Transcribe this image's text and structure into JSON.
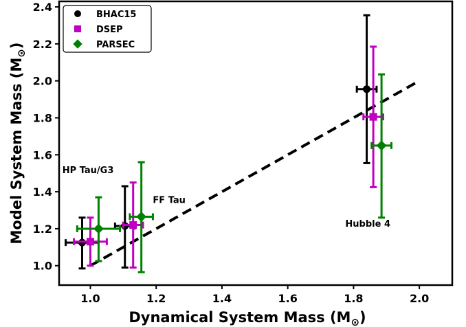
{
  "chart_data": {
    "type": "scatter",
    "xlabel": "Dynamical System Mass (M",
    "ylabel": "Model System Mass (M",
    "unit_symbol": "⊙",
    "xlim": [
      0.905,
      2.1
    ],
    "ylim": [
      0.895,
      2.43
    ],
    "xticks": [
      1.0,
      1.2,
      1.4,
      1.6,
      1.8,
      2.0
    ],
    "xtick_labels": [
      "1.0",
      "1.2",
      "1.4",
      "1.6",
      "1.8",
      "2.0"
    ],
    "yticks": [
      1.0,
      1.2,
      1.4,
      1.6,
      1.8,
      2.0,
      2.2,
      2.4
    ],
    "ytick_labels": [
      "1.0",
      "1.2",
      "1.4",
      "1.6",
      "1.8",
      "2.0",
      "2.2",
      "2.4"
    ],
    "one_to_one_line": {
      "x": [
        1.0,
        2.0
      ],
      "y": [
        1.0,
        2.0
      ],
      "style": "dashed",
      "color": "#000000"
    },
    "legend_position": "upper-left",
    "series": [
      {
        "name": "BHAC15",
        "marker": "circle",
        "color": "#000000",
        "points": [
          {
            "x": 0.975,
            "y": 1.125,
            "xerr": 0.05,
            "yerr_low": 0.14,
            "yerr_high": 0.135
          },
          {
            "x": 1.105,
            "y": 1.215,
            "xerr": 0.03,
            "yerr_low": 0.225,
            "yerr_high": 0.215
          },
          {
            "x": 1.84,
            "y": 1.955,
            "xerr": 0.03,
            "yerr_low": 0.4,
            "yerr_high": 0.4
          }
        ]
      },
      {
        "name": "DSEP",
        "marker": "square",
        "color": "#c000c0",
        "points": [
          {
            "x": 1.0,
            "y": 1.13,
            "xerr": 0.05,
            "yerr_low": 0.13,
            "yerr_high": 0.13
          },
          {
            "x": 1.13,
            "y": 1.22,
            "xerr": 0.03,
            "yerr_low": 0.23,
            "yerr_high": 0.23
          },
          {
            "x": 1.86,
            "y": 1.805,
            "xerr": 0.03,
            "yerr_low": 0.38,
            "yerr_high": 0.38
          }
        ]
      },
      {
        "name": "PARSEC",
        "marker": "diamond",
        "color": "#008000",
        "points": [
          {
            "x": 1.025,
            "y": 1.2,
            "xerr": 0.065,
            "yerr_low": 0.175,
            "yerr_high": 0.17
          },
          {
            "x": 1.155,
            "y": 1.265,
            "xerr": 0.035,
            "yerr_low": 0.3,
            "yerr_high": 0.295
          },
          {
            "x": 1.885,
            "y": 1.65,
            "xerr": 0.03,
            "yerr_low": 0.39,
            "yerr_high": 0.385
          }
        ]
      }
    ],
    "annotations": [
      {
        "text": "HP Tau/G3",
        "x": 0.915,
        "y": 1.5
      },
      {
        "text": "FF Tau",
        "x": 1.19,
        "y": 1.34
      },
      {
        "text": "Hubble 4",
        "x": 1.775,
        "y": 1.21
      }
    ]
  }
}
